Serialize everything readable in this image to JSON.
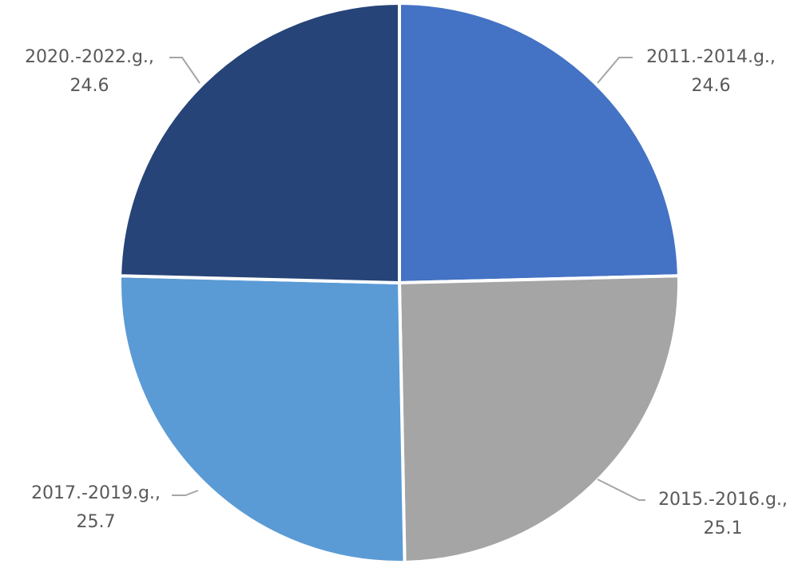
{
  "chart_data": {
    "type": "pie",
    "title": "",
    "legend": "none",
    "start_angle_deg": 0,
    "direction": "clockwise",
    "slices": [
      {
        "label": "2011.-2014.g.,",
        "value": 24.6,
        "value_text": "24.6",
        "color": "#4472c4"
      },
      {
        "label": "2015.-2016.g.,",
        "value": 25.1,
        "value_text": "25.1",
        "color": "#a5a5a5"
      },
      {
        "label": "2017.-2019.g.,",
        "value": 25.7,
        "value_text": "25.7",
        "color": "#5b9bd5"
      },
      {
        "label": "2020.-2022.g.,",
        "value": 24.6,
        "value_text": "24.6",
        "color": "#264478"
      }
    ]
  }
}
